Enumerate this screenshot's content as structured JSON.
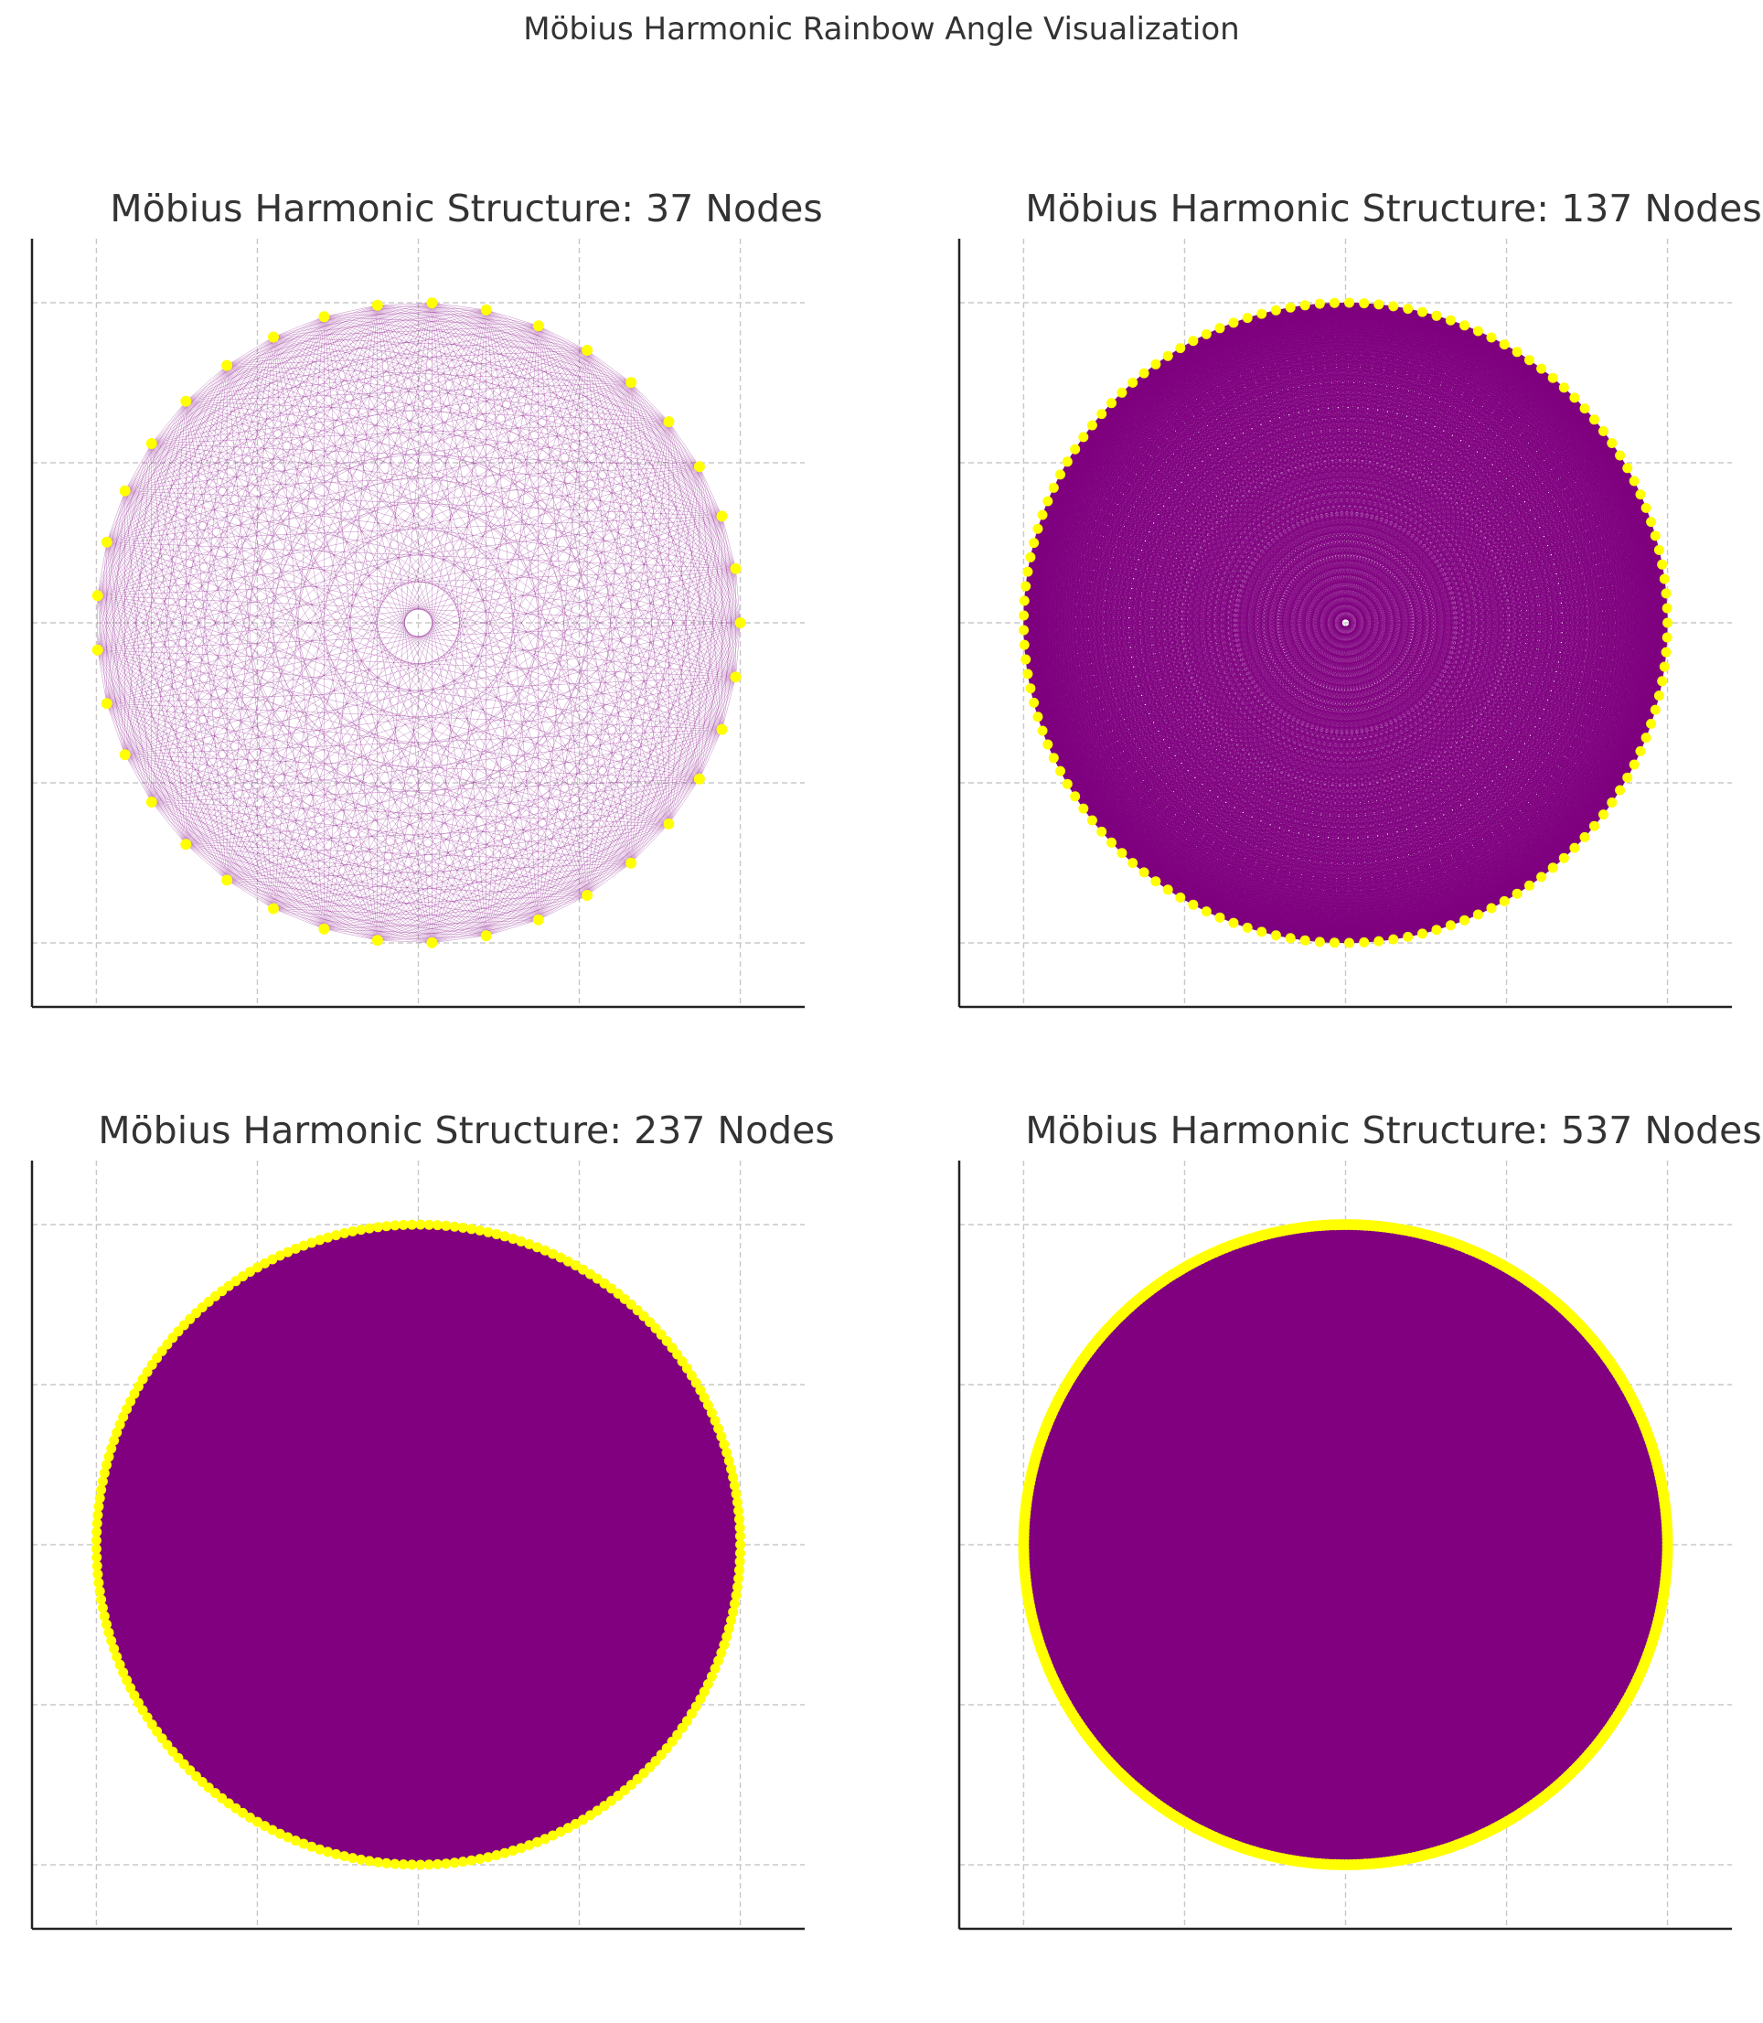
{
  "figure": {
    "title": "Möbius Harmonic Rainbow Angle Visualization"
  },
  "colors": {
    "edge": "#800080",
    "node": "#ffff00",
    "grid": "#c8c8c8",
    "spine": "#222222",
    "text": "#333333"
  },
  "chart_data": [
    {
      "type": "scatter",
      "title": "Möbius Harmonic Structure: 37 Nodes",
      "nodes": 37,
      "radius": 1,
      "xlim": [
        -1.2,
        1.2
      ],
      "ylim": [
        -1.2,
        1.2
      ],
      "xticks": [
        -1.0,
        -0.5,
        0.0,
        0.5,
        1.0
      ],
      "yticks": [
        -1.0,
        -0.5,
        0.0,
        0.5,
        1.0
      ],
      "tick_labels_visible": false,
      "grid": true,
      "edges": "complete graph between all nodes (chords)"
    },
    {
      "type": "scatter",
      "title": "Möbius Harmonic Structure: 137 Nodes",
      "nodes": 137,
      "radius": 1,
      "xlim": [
        -1.2,
        1.2
      ],
      "ylim": [
        -1.2,
        1.2
      ],
      "xticks": [
        -1.0,
        -0.5,
        0.0,
        0.5,
        1.0
      ],
      "yticks": [
        -1.0,
        -0.5,
        0.0,
        0.5,
        1.0
      ],
      "tick_labels_visible": false,
      "grid": true,
      "edges": "complete graph between all nodes (chords)"
    },
    {
      "type": "scatter",
      "title": "Möbius Harmonic Structure: 237 Nodes",
      "nodes": 237,
      "radius": 1,
      "xlim": [
        -1.2,
        1.2
      ],
      "ylim": [
        -1.2,
        1.2
      ],
      "xticks": [
        -1.0,
        -0.5,
        0.0,
        0.5,
        1.0
      ],
      "yticks": [
        -1.0,
        -0.5,
        0.0,
        0.5,
        1.0
      ],
      "tick_labels_visible": false,
      "grid": true,
      "edges": "complete graph between all nodes (chords)"
    },
    {
      "type": "scatter",
      "title": "Möbius Harmonic Structure: 537 Nodes",
      "nodes": 537,
      "radius": 1,
      "xlim": [
        -1.2,
        1.2
      ],
      "ylim": [
        -1.2,
        1.2
      ],
      "xticks": [
        -1.0,
        -0.5,
        0.0,
        0.5,
        1.0
      ],
      "yticks": [
        -1.0,
        -0.5,
        0.0,
        0.5,
        1.0
      ],
      "tick_labels_visible": false,
      "grid": true,
      "edges": "complete graph between all nodes (chords)"
    }
  ]
}
